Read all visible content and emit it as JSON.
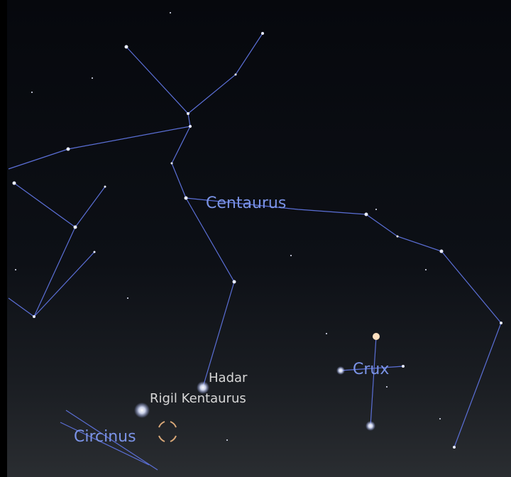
{
  "labels": {
    "constellations": [
      "Centaurus",
      "Crux",
      "Circinus"
    ],
    "stars": [
      "Hadar",
      "Rigil Kentaurus"
    ]
  }
}
